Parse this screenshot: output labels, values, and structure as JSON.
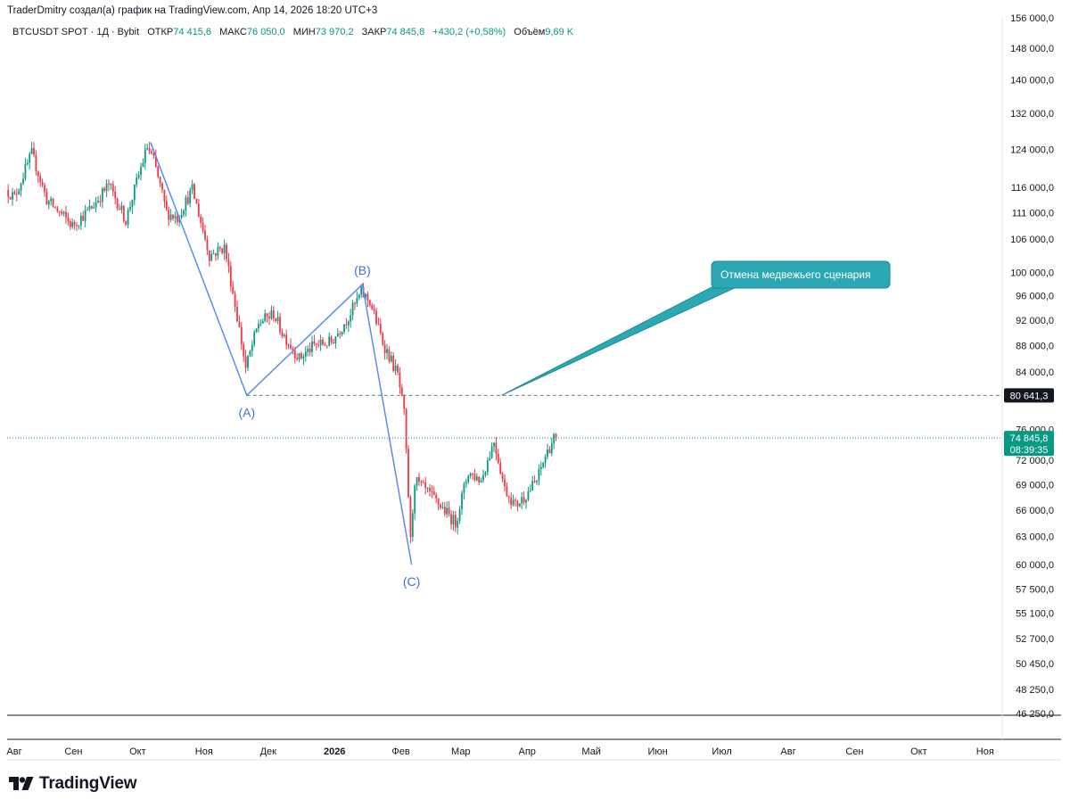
{
  "header": {
    "author_line": "TraderDmitry создал(а) график на TradingView.com, Апр 14, 2026 18:20 UTC+3"
  },
  "infobar": {
    "symbol": "BTCUSDT SPOT · 1Д · Bybit",
    "open_label": "ОТКР",
    "open_value": "74 415,6",
    "high_label": "МАКС",
    "high_value": "76 050,0",
    "low_label": "МИН",
    "low_value": "73 970,2",
    "close_label": "ЗАКР",
    "close_value": "74 845,8",
    "change": "+430,2 (+0,58%)",
    "volume_label": "Объём",
    "volume_value": "9,69 K"
  },
  "colors": {
    "up": "#089981",
    "down": "#f23645",
    "wave_line": "#5b8def",
    "callout_bg": "#2ba8b4",
    "axis_text": "#131722",
    "grid": "#e0e3eb"
  },
  "chart_data": {
    "type": "candlestick",
    "symbol": "BTCUSDT",
    "timeframe": "1D",
    "x_tick_labels": [
      "Авг",
      "Сен",
      "Окт",
      "Ноя",
      "Дек",
      "2026",
      "Фев",
      "Мар",
      "Апр",
      "Май",
      "Июн",
      "Июл",
      "Авг",
      "Сен",
      "Окт",
      "Ноя"
    ],
    "y_tick_labels": [
      "156 000,0",
      "148 000,0",
      "140 000,0",
      "132 000,0",
      "124 000,0",
      "116 000,0",
      "111 000,0",
      "106 000,0",
      "100 000,0",
      "96 000,0",
      "92 000,0",
      "88 000,0",
      "84 000,0",
      "76 000,0",
      "72 000,0",
      "69 000,0",
      "66 000,0",
      "63 000,0",
      "60 000,0",
      "57 500,0",
      "55 100,0",
      "52 700,0",
      "50 450,0",
      "48 250,0",
      "46 250,0"
    ],
    "y_ticks": [
      156000,
      148000,
      140000,
      132000,
      124000,
      116000,
      111000,
      106000,
      100000,
      96000,
      92000,
      88000,
      84000,
      76000,
      72000,
      69000,
      66000,
      63000,
      60000,
      57500,
      55100,
      52700,
      50450,
      48250,
      46250
    ],
    "y_scale": "log",
    "ylim": [
      46250,
      156000
    ],
    "price_path": [
      [
        "2025-08-01",
        115500
      ],
      [
        "2025-08-05",
        114000
      ],
      [
        "2025-08-13",
        123000
      ],
      [
        "2025-08-20",
        113500
      ],
      [
        "2025-09-01",
        108500
      ],
      [
        "2025-09-10",
        112000
      ],
      [
        "2025-09-18",
        116500
      ],
      [
        "2025-09-26",
        109500
      ],
      [
        "2025-10-06",
        124500
      ],
      [
        "2025-10-09",
        121500
      ],
      [
        "2025-10-15",
        111000
      ],
      [
        "2025-10-20",
        110000
      ],
      [
        "2025-10-27",
        115500
      ],
      [
        "2025-11-04",
        103000
      ],
      [
        "2025-11-11",
        104500
      ],
      [
        "2025-11-17",
        92500
      ],
      [
        "2025-11-21",
        84500
      ],
      [
        "2025-11-27",
        91500
      ],
      [
        "2025-12-04",
        93000
      ],
      [
        "2025-12-08",
        90000
      ],
      [
        "2025-12-16",
        86000
      ],
      [
        "2025-12-23",
        88000
      ],
      [
        "2025-12-31",
        88500
      ],
      [
        "2026-01-08",
        92500
      ],
      [
        "2026-01-14",
        96500
      ],
      [
        "2026-01-18",
        95000
      ],
      [
        "2026-01-24",
        88500
      ],
      [
        "2026-01-31",
        83500
      ],
      [
        "2026-02-03",
        78000
      ],
      [
        "2026-02-06",
        62500
      ],
      [
        "2026-02-08",
        69500
      ],
      [
        "2026-02-14",
        68000
      ],
      [
        "2026-02-20",
        66500
      ],
      [
        "2026-02-27",
        64500
      ],
      [
        "2026-03-05",
        70500
      ],
      [
        "2026-03-11",
        69500
      ],
      [
        "2026-03-17",
        74500
      ],
      [
        "2026-03-22",
        68500
      ],
      [
        "2026-03-27",
        66500
      ],
      [
        "2026-03-31",
        67500
      ],
      [
        "2026-04-06",
        69500
      ],
      [
        "2026-04-10",
        72500
      ],
      [
        "2026-04-14",
        74845.8
      ]
    ],
    "last_price": {
      "value": 74845.8,
      "label": "74 845,8",
      "countdown": "08:39:35"
    },
    "horizontal_level": {
      "value": 80641.3,
      "label": "80 641,3"
    },
    "abc_wave": [
      {
        "label": "",
        "date": "2025-10-07",
        "price": 125500
      },
      {
        "label": "(A)",
        "date": "2025-11-21",
        "price": 80641.3
      },
      {
        "label": "(B)",
        "date": "2026-01-14",
        "price": 97900
      },
      {
        "label": "(C)",
        "date": "2026-02-06",
        "price": 60000
      }
    ],
    "annotation": {
      "text": "Отмена медвежьего сценария",
      "pointer_date": "2026-03-20",
      "pointer_price": 80641.3
    }
  },
  "branding": {
    "logo_text": "TradingView"
  }
}
